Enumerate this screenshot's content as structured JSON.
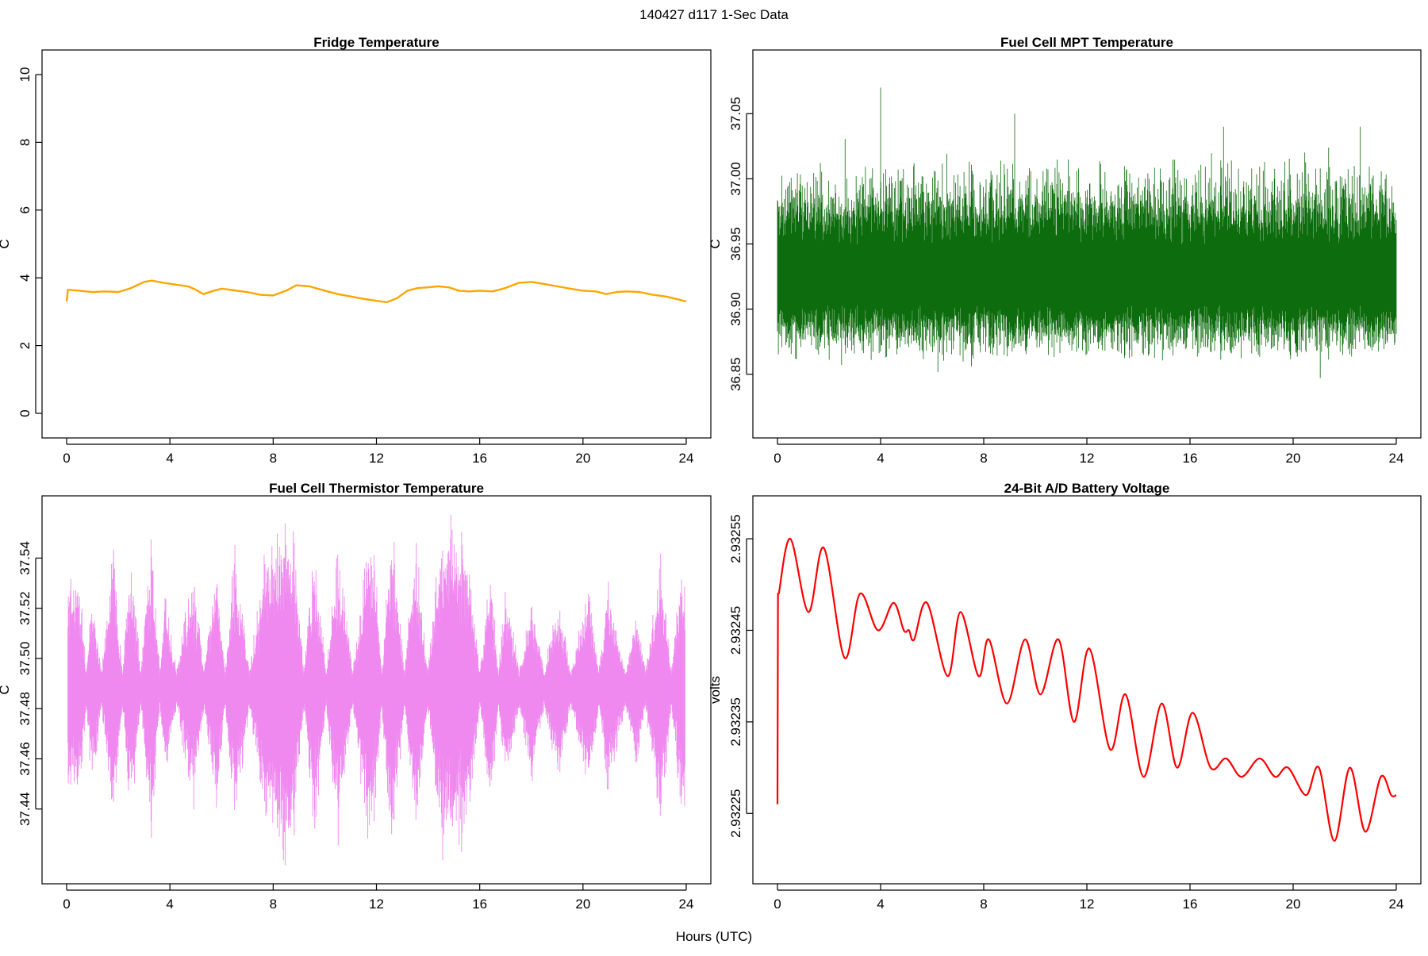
{
  "header": {
    "title": "140427   d117   1-Sec Data"
  },
  "footer": {
    "xlabel": "Hours (UTC)"
  },
  "chart_data": [
    {
      "type": "line",
      "title": "Fridge Temperature",
      "xlabel": "",
      "ylabel": "C",
      "color": "#FFA500",
      "xlim": [
        0,
        24
      ],
      "ylim": [
        0,
        10
      ],
      "xticks": [
        0,
        4,
        8,
        12,
        16,
        20,
        24
      ],
      "yticks": [
        0,
        2,
        4,
        6,
        8,
        10
      ],
      "tick_labels_y": [
        "0",
        "2",
        "4",
        "6",
        "8",
        "10"
      ],
      "x": [
        0,
        0.05,
        0.5,
        1.0,
        1.5,
        2.0,
        2.5,
        3.0,
        3.3,
        3.7,
        4.2,
        4.7,
        5.0,
        5.3,
        5.7,
        6.0,
        6.5,
        7.0,
        7.5,
        8.0,
        8.5,
        8.9,
        9.4,
        10.0,
        10.5,
        11.0,
        11.5,
        12.0,
        12.4,
        12.8,
        13.2,
        13.6,
        14.0,
        14.4,
        14.8,
        15.2,
        15.6,
        16.0,
        16.5,
        17.0,
        17.5,
        18.0,
        18.5,
        19.0,
        19.5,
        20.0,
        20.5,
        20.9,
        21.3,
        21.7,
        22.2,
        22.7,
        23.2,
        23.6,
        24.0
      ],
      "y": [
        3.3,
        3.65,
        3.62,
        3.58,
        3.6,
        3.58,
        3.7,
        3.88,
        3.92,
        3.86,
        3.8,
        3.75,
        3.65,
        3.52,
        3.62,
        3.68,
        3.63,
        3.58,
        3.5,
        3.48,
        3.62,
        3.78,
        3.75,
        3.62,
        3.52,
        3.45,
        3.38,
        3.32,
        3.28,
        3.4,
        3.62,
        3.7,
        3.72,
        3.75,
        3.72,
        3.62,
        3.6,
        3.62,
        3.6,
        3.7,
        3.85,
        3.88,
        3.82,
        3.75,
        3.68,
        3.62,
        3.6,
        3.52,
        3.58,
        3.6,
        3.58,
        3.5,
        3.45,
        3.38,
        3.3
      ]
    },
    {
      "type": "line",
      "title": "Fuel Cell MPT Temperature",
      "xlabel": "",
      "ylabel": "C",
      "color": "#006400",
      "xlim": [
        0,
        24
      ],
      "ylim": [
        36.82,
        37.08
      ],
      "xticks": [
        0,
        4,
        8,
        12,
        16,
        20,
        24
      ],
      "yticks": [
        36.85,
        36.9,
        36.95,
        37.0,
        37.05
      ],
      "tick_labels_y": [
        "36.85",
        "36.90",
        "36.95",
        "37.00",
        "37.05"
      ],
      "noise_center": 36.925,
      "noise_halfwidth": 0.03,
      "x": [
        0,
        0.5,
        1.5,
        3.5,
        4.0,
        6.0,
        9.2,
        12.0,
        15.0,
        17.3,
        17.6,
        19.7,
        20.5,
        22.6,
        24.0
      ],
      "y": [
        36.925,
        36.925,
        36.925,
        36.925,
        37.07,
        36.925,
        37.05,
        36.925,
        36.925,
        37.04,
        36.925,
        36.925,
        36.925,
        37.04,
        36.925
      ]
    },
    {
      "type": "line",
      "title": "Fuel Cell Thermistor Temperature",
      "xlabel": "",
      "ylabel": "C",
      "color": "#EE82EE",
      "xlim": [
        0,
        24
      ],
      "ylim": [
        37.42,
        37.555
      ],
      "xticks": [
        0,
        4,
        8,
        12,
        16,
        20,
        24
      ],
      "yticks": [
        37.44,
        37.46,
        37.48,
        37.5,
        37.52,
        37.54
      ],
      "tick_labels_y": [
        "37.44",
        "37.46",
        "37.48",
        "37.50",
        "37.52",
        "37.54"
      ],
      "noise_center": 37.488,
      "x": [
        0.5,
        1.0,
        1.8,
        2.5,
        3.3,
        3.8,
        4.9,
        5.8,
        6.5,
        7.6,
        8.7,
        9.6,
        10.5,
        11.8,
        12.6,
        13.5,
        14.5,
        15.5,
        16.4,
        17.0,
        18.0,
        19.0,
        20.2,
        21.0,
        22.1,
        23.0,
        23.8
      ],
      "y": [
        37.455,
        37.52,
        37.445,
        37.53,
        37.44,
        37.515,
        37.45,
        37.53,
        37.445,
        37.525,
        37.545,
        37.44,
        37.535,
        37.43,
        37.545,
        37.44,
        37.54,
        37.535,
        37.45,
        37.52,
        37.46,
        37.515,
        37.455,
        37.52,
        37.465,
        37.53,
        37.45
      ]
    },
    {
      "type": "line",
      "title": "24-Bit A/D Battery Voltage",
      "xlabel": "",
      "ylabel": "volts",
      "color": "#FF0000",
      "xlim": [
        0,
        24
      ],
      "ylim": [
        2.9322,
        2.93257
      ],
      "xticks": [
        0,
        4,
        8,
        12,
        16,
        20,
        24
      ],
      "yticks": [
        2.93225,
        2.93235,
        2.93245,
        2.93255
      ],
      "tick_labels_y": [
        "2.93225",
        "2.93235",
        "2.93245",
        "2.93255"
      ],
      "x": [
        0.0,
        0.02,
        0.05,
        0.5,
        1.2,
        1.8,
        2.6,
        3.2,
        3.9,
        4.5,
        4.9,
        5.1,
        5.3,
        5.8,
        6.6,
        7.1,
        7.8,
        8.2,
        8.9,
        9.6,
        10.2,
        10.9,
        11.5,
        12.1,
        12.9,
        13.5,
        14.2,
        14.9,
        15.5,
        16.1,
        16.8,
        17.4,
        18.0,
        18.7,
        19.3,
        19.8,
        20.5,
        21.0,
        21.6,
        22.2,
        22.8,
        23.4,
        23.8,
        24.0
      ],
      "y": [
        2.93226,
        2.93249,
        2.93249,
        2.93255,
        2.93247,
        2.93254,
        2.93242,
        2.93249,
        2.93245,
        2.93248,
        2.93245,
        2.93245,
        2.93244,
        2.93248,
        2.9324,
        2.93247,
        2.9324,
        2.93244,
        2.93237,
        2.93244,
        2.93238,
        2.93244,
        2.93235,
        2.93243,
        2.93232,
        2.93238,
        2.93229,
        2.93237,
        2.9323,
        2.93236,
        2.9323,
        2.93231,
        2.93229,
        2.93231,
        2.93229,
        2.9323,
        2.93227,
        2.9323,
        2.93222,
        2.9323,
        2.93223,
        2.93229,
        2.93227,
        2.93227
      ]
    }
  ]
}
